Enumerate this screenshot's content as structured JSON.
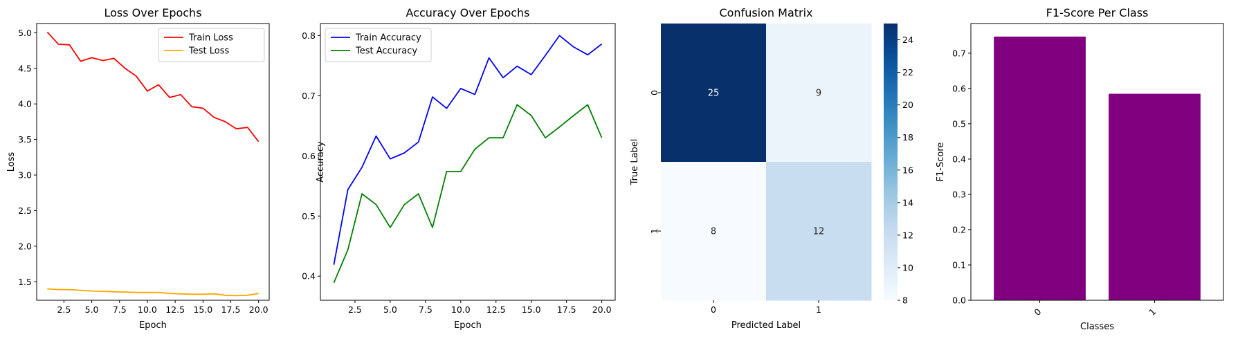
{
  "chart_data": [
    {
      "type": "line",
      "title": "Loss Over Epochs",
      "xlabel": "Epoch",
      "ylabel": "Loss",
      "x": [
        1,
        2,
        3,
        4,
        5,
        6,
        7,
        8,
        9,
        10,
        11,
        12,
        13,
        14,
        15,
        16,
        17,
        18,
        19,
        20
      ],
      "xlim": [
        0.05,
        20.95
      ],
      "ylim": [
        1.24,
        5.13
      ],
      "xticks": [
        2.5,
        5.0,
        7.5,
        10.0,
        12.5,
        15.0,
        17.5,
        20.0
      ],
      "xtick_labels": [
        "2.5",
        "5.0",
        "7.5",
        "10.0",
        "12.5",
        "15.0",
        "17.5",
        "20.0"
      ],
      "yticks": [
        1.5,
        2.0,
        2.5,
        3.0,
        3.5,
        4.0,
        4.5,
        5.0
      ],
      "ytick_labels": [
        "1.5",
        "2.0",
        "2.5",
        "3.0",
        "3.5",
        "4.0",
        "4.5",
        "5.0"
      ],
      "legend_position": "upper right",
      "series": [
        {
          "name": "Train Loss",
          "color": "#ff0000",
          "values": [
            5.01,
            4.84,
            4.83,
            4.6,
            4.65,
            4.61,
            4.64,
            4.5,
            4.39,
            4.18,
            4.27,
            4.09,
            4.13,
            3.96,
            3.94,
            3.81,
            3.75,
            3.65,
            3.67,
            3.47
          ]
        },
        {
          "name": "Test Loss",
          "color": "#ffa500",
          "values": [
            1.4,
            1.39,
            1.39,
            1.38,
            1.37,
            1.365,
            1.36,
            1.355,
            1.35,
            1.35,
            1.35,
            1.335,
            1.33,
            1.325,
            1.325,
            1.33,
            1.31,
            1.305,
            1.31,
            1.335
          ]
        }
      ]
    },
    {
      "type": "line",
      "title": "Accuracy Over Epochs",
      "xlabel": "Epoch",
      "ylabel": "Accuracy",
      "x": [
        1,
        2,
        3,
        4,
        5,
        6,
        7,
        8,
        9,
        10,
        11,
        12,
        13,
        14,
        15,
        16,
        17,
        18,
        19,
        20
      ],
      "xlim": [
        0.05,
        20.95
      ],
      "ylim": [
        0.36,
        0.82
      ],
      "xticks": [
        2.5,
        5.0,
        7.5,
        10.0,
        12.5,
        15.0,
        17.5,
        20.0
      ],
      "xtick_labels": [
        "2.5",
        "5.0",
        "7.5",
        "10.0",
        "12.5",
        "15.0",
        "17.5",
        "20.0"
      ],
      "yticks": [
        0.4,
        0.5,
        0.6,
        0.7,
        0.8
      ],
      "ytick_labels": [
        "0.4",
        "0.5",
        "0.6",
        "0.7",
        "0.8"
      ],
      "legend_position": "upper left",
      "series": [
        {
          "name": "Train Accuracy",
          "color": "#0000ff",
          "values": [
            0.419,
            0.544,
            0.581,
            0.633,
            0.595,
            0.605,
            0.623,
            0.698,
            0.679,
            0.712,
            0.702,
            0.763,
            0.73,
            0.749,
            0.735,
            0.767,
            0.8,
            0.781,
            0.768,
            0.786
          ]
        },
        {
          "name": "Test Accuracy",
          "color": "#008000",
          "values": [
            0.389,
            0.444,
            0.537,
            0.519,
            0.481,
            0.519,
            0.537,
            0.481,
            0.574,
            0.574,
            0.611,
            0.63,
            0.63,
            0.685,
            0.667,
            0.63,
            0.648,
            0.667,
            0.685,
            0.63
          ]
        }
      ]
    },
    {
      "type": "heatmap",
      "title": "Confusion Matrix",
      "xlabel": "Predicted Label",
      "ylabel": "True Label",
      "x_categories": [
        "0",
        "1"
      ],
      "y_categories": [
        "0",
        "1"
      ],
      "values": [
        [
          25,
          9
        ],
        [
          8,
          12
        ]
      ],
      "colormap": "Blues",
      "colorbar_range": [
        8,
        25
      ],
      "colorbar_ticks": [
        8,
        10,
        12,
        14,
        16,
        18,
        20,
        22,
        24
      ],
      "colorbar_tick_labels": [
        "8",
        "10",
        "12",
        "14",
        "16",
        "18",
        "20",
        "22",
        "24"
      ]
    },
    {
      "type": "bar",
      "title": "F1-Score Per Class",
      "xlabel": "Classes",
      "ylabel": "F1-Score",
      "categories": [
        "0",
        "1"
      ],
      "values": [
        0.747,
        0.585
      ],
      "color": "#800080",
      "ylim": [
        0,
        0.784
      ],
      "yticks": [
        0.0,
        0.1,
        0.2,
        0.3,
        0.4,
        0.5,
        0.6,
        0.7
      ],
      "ytick_labels": [
        "0.0",
        "0.1",
        "0.2",
        "0.3",
        "0.4",
        "0.5",
        "0.6",
        "0.7"
      ],
      "xtick_rotation": 45
    }
  ]
}
